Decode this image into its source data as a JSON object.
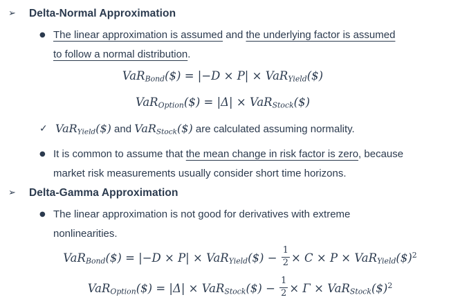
{
  "page": {
    "background": "#ffffff",
    "text_color": "#2b3a4e"
  },
  "icons": {
    "section_marker": "➢",
    "bullet_marker": "●",
    "check_marker": "✓"
  },
  "sections": {
    "delta_normal": {
      "heading": "Delta-Normal Approximation",
      "bullet1_segments": [
        {
          "text": "The linear approximation is assumed",
          "u": true
        },
        {
          "text": " and ",
          "u": false
        },
        {
          "text": "the underlying factor is assumed",
          "u": true,
          "br": true
        },
        {
          "text": "to follow a normal distribution",
          "u": true
        },
        {
          "text": ".",
          "u": false
        }
      ],
      "bullet2_segments": [
        {
          "text": "It is common to assume that ",
          "u": false
        },
        {
          "text": "the mean change in risk factor is zero",
          "u": true
        },
        {
          "text": ", because",
          "u": false,
          "br": true
        },
        {
          "text": "market risk measurements usually consider short time horizons.",
          "u": false
        }
      ]
    },
    "delta_gamma": {
      "heading": "Delta-Gamma Approximation",
      "bullet1_segments": [
        {
          "text": "The linear approximation is not good for derivatives with extreme",
          "u": false,
          "br": true
        },
        {
          "text": "nonlinearities.",
          "u": false
        }
      ]
    }
  },
  "formulas": {
    "var_bond_linear": [
      {
        "k": "it",
        "t": "VaR"
      },
      {
        "k": "sub",
        "t": "Bond"
      },
      {
        "k": "it",
        "t": "($) = |−D × P| × "
      },
      {
        "k": "it",
        "t": "VaR"
      },
      {
        "k": "sub",
        "t": "Yield"
      },
      {
        "k": "it",
        "t": "($)"
      }
    ],
    "var_option_linear": [
      {
        "k": "it",
        "t": "VaR"
      },
      {
        "k": "sub",
        "t": "Option"
      },
      {
        "k": "it",
        "t": "($) = |Δ| × "
      },
      {
        "k": "it",
        "t": "VaR"
      },
      {
        "k": "sub",
        "t": "Stock"
      },
      {
        "k": "it",
        "t": "($)"
      }
    ],
    "check_line": [
      {
        "k": "it",
        "t": "VaR"
      },
      {
        "k": "sub",
        "t": "Yield"
      },
      {
        "k": "it",
        "t": "($)"
      },
      {
        "k": "tx",
        "t": " and "
      },
      {
        "k": "it",
        "t": "VaR"
      },
      {
        "k": "sub",
        "t": "Stock"
      },
      {
        "k": "it",
        "t": "($)"
      },
      {
        "k": "tx",
        "t": " are calculated assuming normality."
      }
    ],
    "var_bond_gamma": [
      {
        "k": "it",
        "t": "VaR"
      },
      {
        "k": "sub",
        "t": "Bond"
      },
      {
        "k": "it",
        "t": "($) = |−D × P| × "
      },
      {
        "k": "it",
        "t": "VaR"
      },
      {
        "k": "sub",
        "t": "Yield"
      },
      {
        "k": "it",
        "t": "($) − "
      },
      {
        "k": "frac",
        "n": "1",
        "d": "2"
      },
      {
        "k": "it",
        "t": "× C × P × "
      },
      {
        "k": "it",
        "t": "VaR"
      },
      {
        "k": "sub",
        "t": "Yield"
      },
      {
        "k": "it",
        "t": "($)"
      },
      {
        "k": "sup",
        "t": "2"
      }
    ],
    "var_option_gamma": [
      {
        "k": "it",
        "t": "VaR"
      },
      {
        "k": "sub",
        "t": "Option"
      },
      {
        "k": "it",
        "t": "($) = |Δ| × "
      },
      {
        "k": "it",
        "t": "VaR"
      },
      {
        "k": "sub",
        "t": "Stock"
      },
      {
        "k": "it",
        "t": "($) − "
      },
      {
        "k": "frac",
        "n": "1",
        "d": "2"
      },
      {
        "k": "it",
        "t": "× Γ × "
      },
      {
        "k": "it",
        "t": "VaR"
      },
      {
        "k": "sub",
        "t": "Stock"
      },
      {
        "k": "it",
        "t": "($)"
      },
      {
        "k": "sup",
        "t": "2"
      }
    ]
  }
}
